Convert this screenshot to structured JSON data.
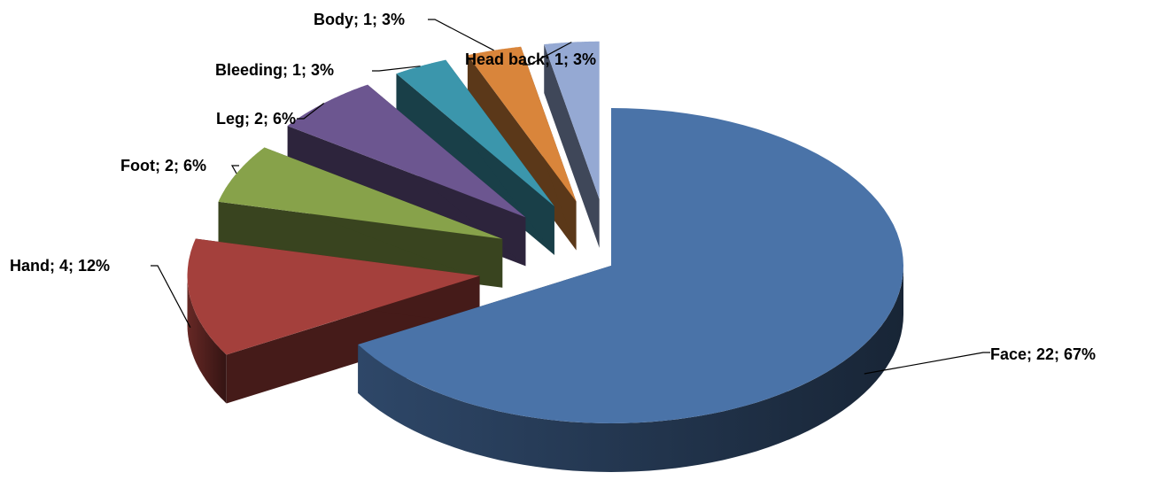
{
  "chart_data": {
    "type": "pie",
    "style": "3d-exploded",
    "slices": [
      {
        "category": "Face",
        "value": 22,
        "percent": "67%",
        "color": "#4a73a8"
      },
      {
        "category": "Hand",
        "value": 4,
        "percent": "12%",
        "color": "#a4403c"
      },
      {
        "category": "Foot",
        "value": 2,
        "percent": "6%",
        "color": "#87a24a"
      },
      {
        "category": "Leg",
        "value": 2,
        "percent": "6%",
        "color": "#6c5690"
      },
      {
        "category": "Bleeding",
        "value": 1,
        "percent": "3%",
        "color": "#3b96ac"
      },
      {
        "category": "Body",
        "value": 1,
        "percent": "3%",
        "color": "#d9853b"
      },
      {
        "category": "Head back",
        "value": 1,
        "percent": "3%",
        "color": "#95a9d3"
      }
    ],
    "data_labels": [
      "Face; 22; 67%",
      "Hand; 4; 12%",
      "Foot; 2; 6%",
      "Leg; 2; 6%",
      "Bleeding; 1; 3%",
      "Body; 1; 3%",
      "Head back; 1; 3%"
    ],
    "legend": "none"
  }
}
